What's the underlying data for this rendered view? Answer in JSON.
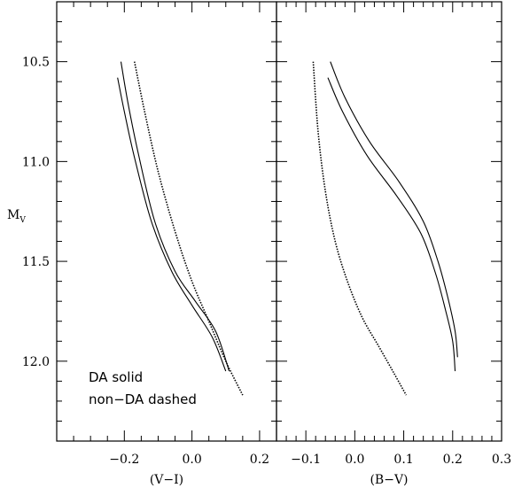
{
  "chart_data": [
    {
      "type": "line",
      "panel": "left",
      "xlabel": "(V−I)",
      "ylabel": "M_V",
      "xlim": [
        -0.4,
        0.25
      ],
      "ylim": [
        12.4,
        10.2
      ],
      "x_ticks": [
        "−0.2",
        "0.0",
        "0.2"
      ],
      "x_tick_values": [
        -0.2,
        0.0,
        0.2
      ],
      "y_ticks": [
        "10.5",
        "11.0",
        "11.5",
        "12.0"
      ],
      "y_tick_values": [
        10.5,
        11.0,
        11.5,
        12.0
      ],
      "series": [
        {
          "style": "solid",
          "x": [
            -0.21,
            -0.19,
            -0.16,
            -0.11,
            -0.05,
            0.01,
            0.07,
            0.11
          ],
          "y": [
            10.5,
            10.7,
            10.95,
            11.3,
            11.55,
            11.7,
            11.85,
            12.05
          ]
        },
        {
          "style": "solid",
          "x": [
            -0.22,
            -0.2,
            -0.17,
            -0.12,
            -0.06,
            0.0,
            0.06,
            0.1
          ],
          "y": [
            10.58,
            10.75,
            10.98,
            11.3,
            11.55,
            11.72,
            11.88,
            12.05
          ]
        },
        {
          "style": "dashed",
          "x": [
            -0.17,
            -0.14,
            -0.1,
            -0.05,
            0.0,
            0.05,
            0.1,
            0.15
          ],
          "y": [
            10.5,
            10.75,
            11.05,
            11.35,
            11.6,
            11.8,
            12.0,
            12.17
          ]
        }
      ],
      "annotations": [
        "DA solid",
        "non−DA dashed"
      ]
    },
    {
      "type": "line",
      "panel": "right",
      "xlabel": "(B−V)",
      "xlim": [
        -0.16,
        0.3
      ],
      "ylim": [
        12.4,
        10.2
      ],
      "x_ticks": [
        "−0.1",
        "0.0",
        "0.1",
        "0.2",
        "0.3"
      ],
      "x_tick_values": [
        -0.1,
        0.0,
        0.1,
        0.2,
        0.3
      ],
      "y_tick_values": [
        10.5,
        11.0,
        11.5,
        12.0
      ],
      "series": [
        {
          "style": "solid",
          "x": [
            -0.05,
            -0.02,
            0.03,
            0.09,
            0.14,
            0.17,
            0.19,
            0.205,
            0.21
          ],
          "y": [
            10.5,
            10.68,
            10.9,
            11.1,
            11.3,
            11.5,
            11.68,
            11.85,
            11.98
          ]
        },
        {
          "style": "solid",
          "x": [
            -0.055,
            -0.025,
            0.025,
            0.085,
            0.135,
            0.165,
            0.185,
            0.2,
            0.205
          ],
          "y": [
            10.58,
            10.75,
            10.97,
            11.17,
            11.36,
            11.56,
            11.74,
            11.9,
            12.05
          ]
        },
        {
          "style": "dashed",
          "x": [
            -0.085,
            -0.075,
            -0.06,
            -0.04,
            -0.015,
            0.015,
            0.05,
            0.08,
            0.105
          ],
          "y": [
            10.5,
            10.85,
            11.15,
            11.4,
            11.6,
            11.78,
            11.93,
            12.06,
            12.17
          ]
        }
      ]
    }
  ]
}
